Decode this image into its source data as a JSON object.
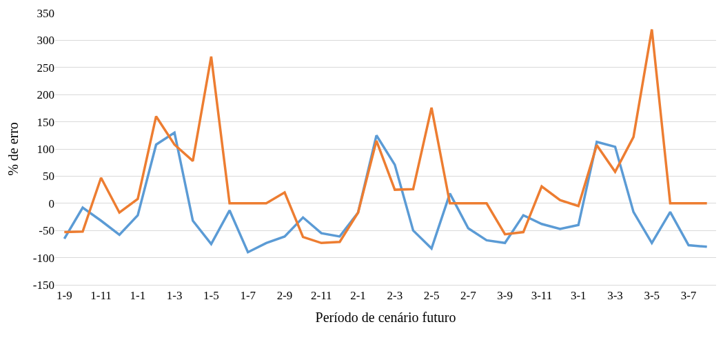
{
  "chart_data": {
    "type": "line",
    "xlabel": "Período de cenário futuro",
    "ylabel": "% de erro",
    "categories": [
      "1-9",
      null,
      "1-11",
      null,
      "1-1",
      null,
      "1-3",
      null,
      "1-5",
      null,
      "1-7",
      null,
      "2-9",
      null,
      "2-11",
      null,
      "2-1",
      null,
      "2-3",
      null,
      "2-5",
      null,
      "2-7",
      null,
      "3-9",
      null,
      "3-11",
      null,
      "3-1",
      null,
      "3-3",
      null,
      "3-5",
      null,
      "3-7",
      null
    ],
    "series": [
      {
        "color": "#5b9bd5",
        "values": [
          -65,
          -8,
          -32,
          -58,
          -22,
          108,
          130,
          -32,
          -75,
          -13,
          -90,
          -73,
          -61,
          -26,
          -55,
          -61,
          -17,
          125,
          71,
          -50,
          -83,
          18,
          -46,
          -68,
          -73,
          -22,
          -38,
          -47,
          -40,
          113,
          104,
          -16,
          -73,
          -16,
          -77,
          -80
        ]
      },
      {
        "color": "#ed7d31",
        "values": [
          -53,
          -52,
          47,
          -17,
          8,
          160,
          108,
          78,
          270,
          0,
          0,
          0,
          20,
          -62,
          -73,
          -71,
          -17,
          115,
          25,
          26,
          176,
          0,
          0,
          0,
          -57,
          -53,
          31,
          6,
          -5,
          107,
          58,
          122,
          320,
          0,
          0,
          0
        ]
      }
    ],
    "ylim": [
      -150,
      350
    ],
    "yticks": [
      -150,
      -100,
      -50,
      0,
      50,
      100,
      150,
      200,
      250,
      300,
      350
    ],
    "grid": "y",
    "marker": "none",
    "line_style": "solid"
  }
}
